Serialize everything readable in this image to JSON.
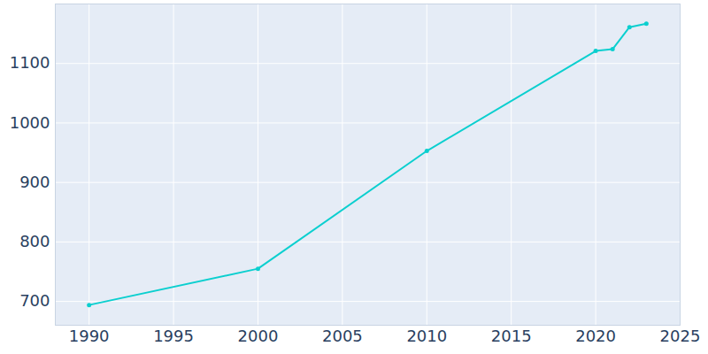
{
  "chart_data": {
    "type": "line",
    "x": [
      1990,
      2000,
      2010,
      2020,
      2021,
      2022,
      2023
    ],
    "values": [
      694,
      755,
      953,
      1121,
      1124,
      1161,
      1167
    ],
    "color": "#0bcfcf",
    "marker": "circle",
    "xlim": [
      1988,
      2025
    ],
    "ylim": [
      660,
      1200
    ],
    "xticks": [
      1990,
      1995,
      2000,
      2005,
      2010,
      2015,
      2020,
      2025
    ],
    "yticks": [
      700,
      800,
      900,
      1000,
      1100
    ],
    "grid": true
  }
}
